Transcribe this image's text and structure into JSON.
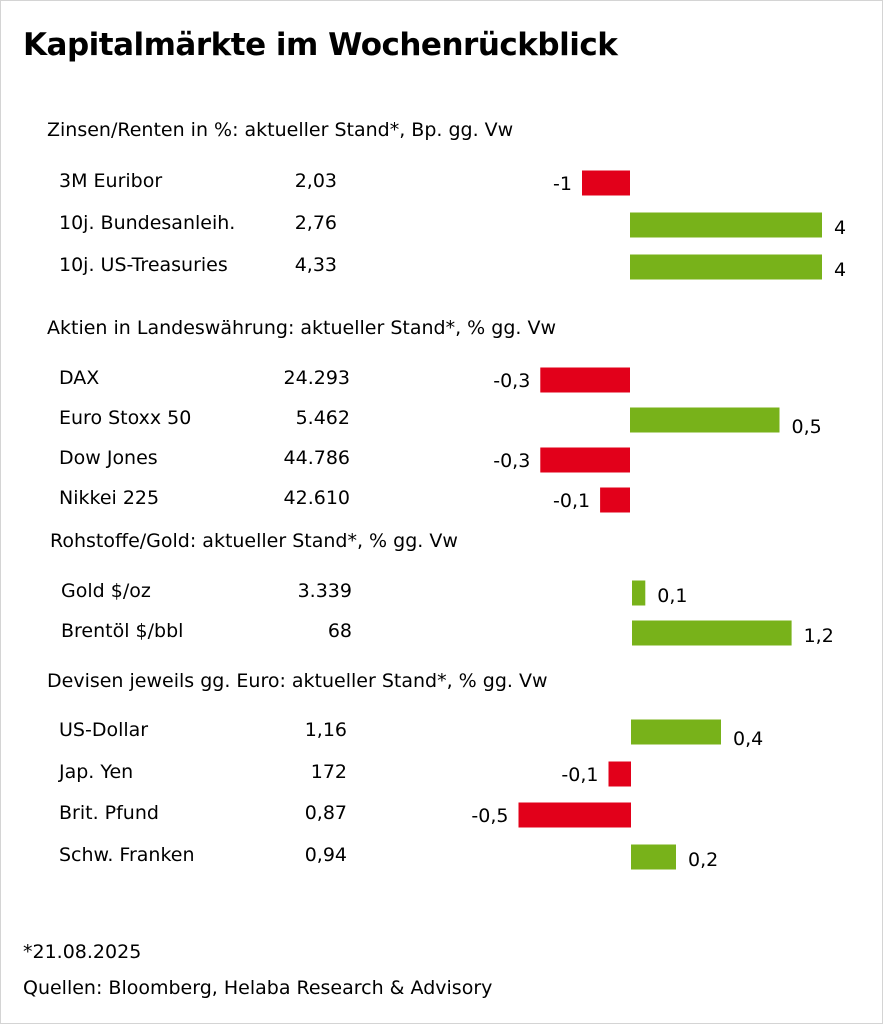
{
  "title": "Kapitalmärkte im Wochenrückblick",
  "footnote": "*21.08.2025",
  "sources": "Quellen: Bloomberg, Helaba Research & Advisory",
  "colors": {
    "positive": "#78b21a",
    "negative": "#e2001a",
    "text": "#000000",
    "border": "#d4d4d4"
  },
  "chart_data": {
    "type": "bar",
    "orientation": "horizontal",
    "sections": [
      {
        "heading": "Zinsen/Renten in %: aktueller Stand*, Bp. gg. Vw",
        "items": [
          {
            "label": "3M Euribor",
            "value_text": "2,03",
            "change": -1,
            "change_text": "-1"
          },
          {
            "label": "10j. Bundesanleih.",
            "value_text": "2,76",
            "change": 4,
            "change_text": "4"
          },
          {
            "label": "10j. US-Treasuries",
            "value_text": "4,33",
            "change": 4,
            "change_text": "4"
          }
        ]
      },
      {
        "heading": "Aktien in Landeswährung: aktueller Stand*, % gg. Vw",
        "items": [
          {
            "label": "DAX",
            "value_text": "24.293",
            "change": -0.3,
            "change_text": "-0,3"
          },
          {
            "label": "Euro Stoxx 50",
            "value_text": "5.462",
            "change": 0.5,
            "change_text": "0,5"
          },
          {
            "label": "Dow Jones",
            "value_text": "44.786",
            "change": -0.3,
            "change_text": "-0,3"
          },
          {
            "label": "Nikkei 225",
            "value_text": "42.610",
            "change": -0.1,
            "change_text": "-0,1"
          }
        ]
      },
      {
        "heading": "Rohstoffe/Gold: aktueller Stand*, % gg. Vw",
        "items": [
          {
            "label": "Gold $/oz",
            "value_text": "3.339",
            "change": 0.1,
            "change_text": "0,1"
          },
          {
            "label": "Brentöl $/bbl",
            "value_text": "68",
            "change": 1.2,
            "change_text": "1,2"
          }
        ]
      },
      {
        "heading": "Devisen jeweils gg. Euro: aktueller Stand*, % gg. Vw",
        "items": [
          {
            "label": "US-Dollar",
            "value_text": "1,16",
            "change": 0.4,
            "change_text": "0,4"
          },
          {
            "label": "Jap. Yen",
            "value_text": "172",
            "change": -0.1,
            "change_text": "-0,1"
          },
          {
            "label": "Brit. Pfund",
            "value_text": "0,87",
            "change": -0.5,
            "change_text": "-0,5"
          },
          {
            "label": "Schw. Franken",
            "value_text": "0,94",
            "change": 0.2,
            "change_text": "0,2"
          }
        ]
      }
    ]
  }
}
